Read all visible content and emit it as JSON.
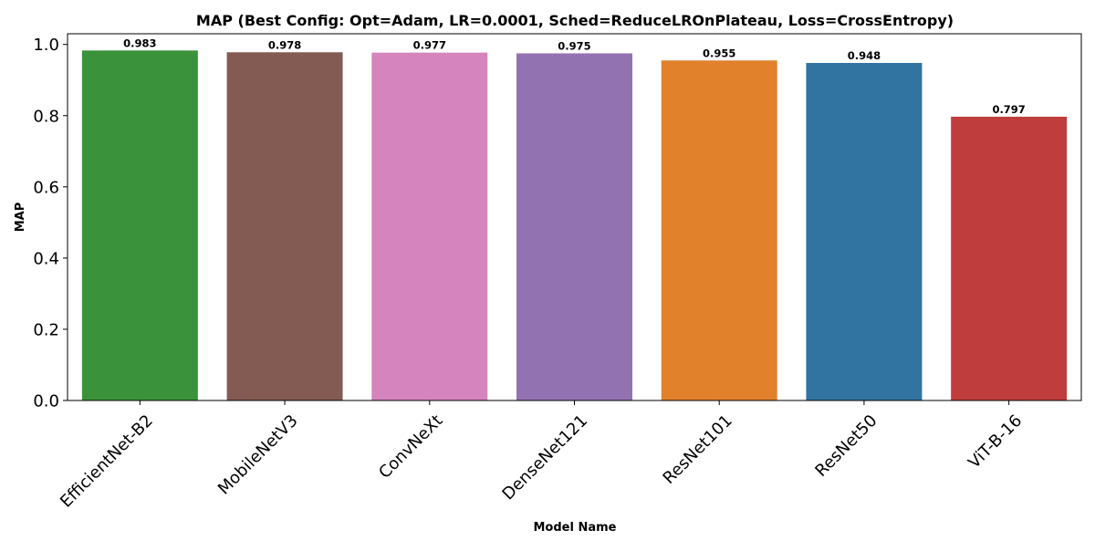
{
  "chart_data": {
    "type": "bar",
    "title": "MAP (Best Config: Opt=Adam, LR=0.0001, Sched=ReduceLROnPlateau, Loss=CrossEntropy)",
    "xlabel": "Model Name",
    "ylabel": "MAP",
    "ylim": [
      0,
      1.03
    ],
    "yticks": [
      "0.0",
      "0.2",
      "0.4",
      "0.6",
      "0.8",
      "1.0"
    ],
    "grid": false,
    "categories": [
      "EfficientNet-B2",
      "MobileNetV3",
      "ConvNeXt",
      "DenseNet121",
      "ResNet101",
      "ResNet50",
      "ViT-B-16"
    ],
    "values": [
      0.983,
      0.978,
      0.977,
      0.975,
      0.955,
      0.948,
      0.797
    ],
    "value_labels": [
      "0.983",
      "0.978",
      "0.977",
      "0.975",
      "0.955",
      "0.948",
      "0.797"
    ],
    "colors": [
      "#3a923a",
      "#845b53",
      "#d684bd",
      "#9372b2",
      "#e1812c",
      "#3274a1",
      "#c03d3e"
    ]
  }
}
